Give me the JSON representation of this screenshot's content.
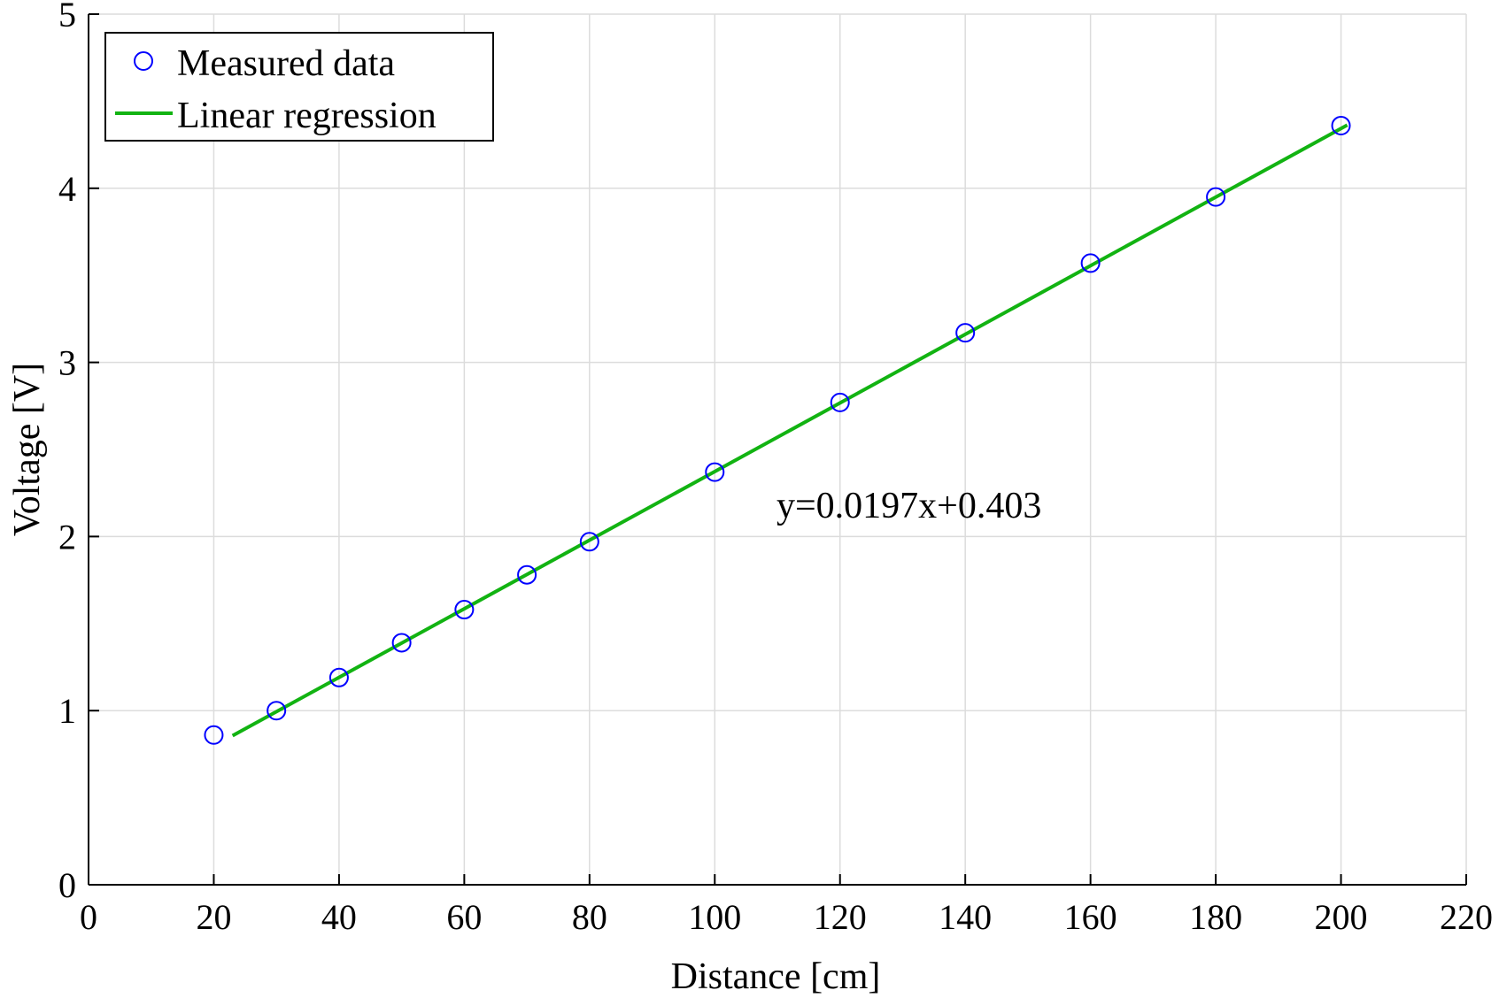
{
  "chart_data": {
    "type": "scatter",
    "title": "",
    "xlabel": "Distance [cm]",
    "ylabel": "Voltage [V]",
    "xlim": [
      0,
      220
    ],
    "ylim": [
      0,
      5
    ],
    "xticks": [
      "0",
      "20",
      "40",
      "60",
      "80",
      "100",
      "120",
      "140",
      "160",
      "180",
      "200",
      "220"
    ],
    "yticks": [
      "0",
      "1",
      "2",
      "3",
      "4",
      "5"
    ],
    "grid": true,
    "legend_position": "top-left",
    "series": [
      {
        "name": "Measured data",
        "kind": "scatter",
        "marker": "circle",
        "color": "#0000ff",
        "x": [
          20,
          30,
          40,
          50,
          60,
          70,
          80,
          100,
          120,
          140,
          160,
          180,
          200
        ],
        "y": [
          0.86,
          1.0,
          1.19,
          1.39,
          1.58,
          1.78,
          1.97,
          2.37,
          2.77,
          3.17,
          3.57,
          3.95,
          4.36
        ]
      },
      {
        "name": "Linear regression",
        "kind": "line",
        "color": "#12b312",
        "x": [
          23,
          201
        ],
        "y": [
          0.856,
          4.363
        ]
      }
    ],
    "annotation": "y=0.0197x+0.403"
  }
}
